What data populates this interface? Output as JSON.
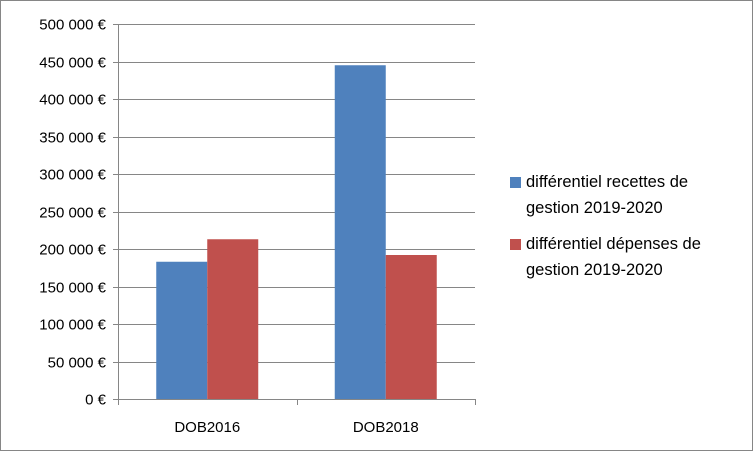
{
  "chart_data": {
    "type": "bar",
    "categories": [
      "DOB2016",
      "DOB2018"
    ],
    "series": [
      {
        "name": "différentiel recettes de gestion 2019-2020",
        "color": "#4F81BD",
        "values": [
          183000,
          445000
        ]
      },
      {
        "name": "différentiel dépenses de gestion 2019-2020",
        "color": "#C0504D",
        "values": [
          213000,
          192000
        ]
      }
    ],
    "y_ticks": [
      "0 €",
      "50 000 €",
      "100 000 €",
      "150 000 €",
      "200 000 €",
      "250 000 €",
      "300 000 €",
      "350 000 €",
      "400 000 €",
      "450 000 €",
      "500 000 €"
    ],
    "ylim": [
      0,
      500000
    ],
    "grid": true,
    "legend_position": "right",
    "title": "",
    "xlabel": "",
    "ylabel": ""
  }
}
